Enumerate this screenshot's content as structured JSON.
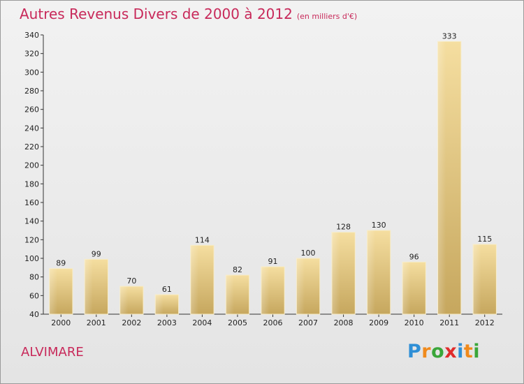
{
  "title": "Autres Revenus Divers de 2000 à 2012",
  "subtitle": "(en milliers d'€)",
  "place_name": "ALVIMARE",
  "logo": {
    "text": "Proxiti",
    "letters": [
      "P",
      "r",
      "o",
      "x",
      "i",
      "t",
      "i"
    ],
    "colors": [
      "#2f8fd6",
      "#f08a1c",
      "#3aa63a",
      "#e02b2b",
      "#2f8fd6",
      "#f08a1c",
      "#3aa63a"
    ]
  },
  "colors": {
    "title": "#c8295a",
    "bar_light": "#f5dea0",
    "bar_dark": "#c6a75e"
  },
  "chart_data": {
    "type": "bar",
    "categories": [
      "2000",
      "2001",
      "2002",
      "2003",
      "2004",
      "2005",
      "2006",
      "2007",
      "2008",
      "2009",
      "2010",
      "2011",
      "2012"
    ],
    "values": [
      89,
      99,
      70,
      61,
      114,
      82,
      91,
      100,
      128,
      130,
      96,
      333,
      115
    ],
    "ylim": [
      40,
      340
    ],
    "yticks": [
      40,
      60,
      80,
      100,
      120,
      140,
      160,
      180,
      200,
      220,
      240,
      260,
      280,
      300,
      320,
      340
    ],
    "grid": false,
    "legend": "none"
  }
}
